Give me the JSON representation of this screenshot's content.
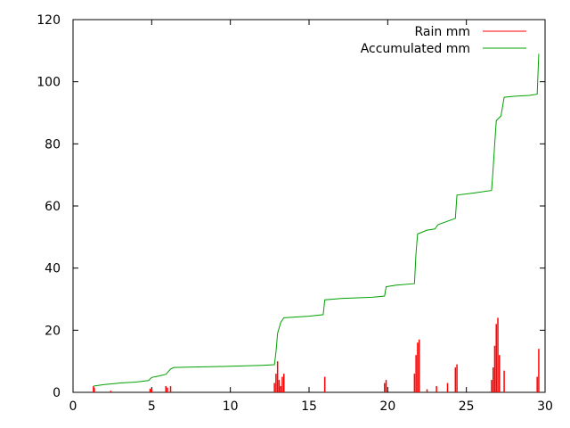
{
  "chart_data": {
    "type": "line",
    "title": "",
    "xlabel": "",
    "ylabel": "",
    "xlim": [
      0,
      30
    ],
    "ylim": [
      0,
      120
    ],
    "x_ticks": [
      0,
      5,
      10,
      15,
      20,
      25,
      30
    ],
    "y_ticks": [
      0,
      20,
      40,
      60,
      80,
      100,
      120
    ],
    "x_tick_labels": [
      "0",
      "5",
      "10",
      "15",
      "20",
      "25",
      "30"
    ],
    "y_tick_labels": [
      "0",
      "20",
      "40",
      "60",
      "80",
      "100",
      "120"
    ],
    "grid": false,
    "legend_position": "top-right",
    "series": [
      {
        "name": "Rain mm",
        "color": "#ff0000",
        "style": "impulses",
        "points": [
          [
            1.3,
            2.0
          ],
          [
            1.35,
            1.5
          ],
          [
            2.4,
            0.5
          ],
          [
            4.9,
            1.2
          ],
          [
            5.0,
            1.0
          ],
          [
            5.9,
            2.0
          ],
          [
            6.0,
            1.5
          ],
          [
            6.2,
            2.0
          ],
          [
            12.8,
            3.0
          ],
          [
            12.9,
            6.0
          ],
          [
            13.0,
            10.0
          ],
          [
            13.1,
            4.0
          ],
          [
            13.2,
            2.0
          ],
          [
            13.3,
            5.0
          ],
          [
            13.4,
            6.0
          ],
          [
            16.0,
            5.0
          ],
          [
            19.8,
            3.0
          ],
          [
            19.9,
            4.0
          ],
          [
            21.7,
            6.0
          ],
          [
            21.8,
            12.0
          ],
          [
            21.9,
            16.0
          ],
          [
            22.0,
            17.0
          ],
          [
            22.5,
            1.0
          ],
          [
            23.1,
            2.0
          ],
          [
            23.8,
            3.0
          ],
          [
            24.3,
            8.0
          ],
          [
            24.4,
            9.0
          ],
          [
            26.6,
            4.0
          ],
          [
            26.7,
            8.0
          ],
          [
            26.8,
            15.0
          ],
          [
            26.9,
            22.0
          ],
          [
            27.0,
            24.0
          ],
          [
            27.1,
            12.0
          ],
          [
            27.4,
            7.0
          ],
          [
            29.5,
            5.0
          ],
          [
            29.6,
            14.0
          ]
        ]
      },
      {
        "name": "Accumulated mm",
        "color": "#00a000",
        "style": "lines",
        "points": [
          [
            1.3,
            2.0
          ],
          [
            2.0,
            2.5
          ],
          [
            3.0,
            3.0
          ],
          [
            4.0,
            3.3
          ],
          [
            4.8,
            3.8
          ],
          [
            5.0,
            4.8
          ],
          [
            5.5,
            5.3
          ],
          [
            5.9,
            5.8
          ],
          [
            6.2,
            7.5
          ],
          [
            6.4,
            8.0
          ],
          [
            8.0,
            8.2
          ],
          [
            10.0,
            8.4
          ],
          [
            12.0,
            8.7
          ],
          [
            12.8,
            8.9
          ],
          [
            12.9,
            13.0
          ],
          [
            13.0,
            19.0
          ],
          [
            13.2,
            22.5
          ],
          [
            13.4,
            24.0
          ],
          [
            15.0,
            24.5
          ],
          [
            15.9,
            25.0
          ],
          [
            16.0,
            29.8
          ],
          [
            17.0,
            30.2
          ],
          [
            19.0,
            30.6
          ],
          [
            19.8,
            31.0
          ],
          [
            19.9,
            34.0
          ],
          [
            20.5,
            34.5
          ],
          [
            21.7,
            35.0
          ],
          [
            21.8,
            45.0
          ],
          [
            21.9,
            51.0
          ],
          [
            22.5,
            52.2
          ],
          [
            23.0,
            52.6
          ],
          [
            23.2,
            54.0
          ],
          [
            24.3,
            56.0
          ],
          [
            24.4,
            63.5
          ],
          [
            25.5,
            64.2
          ],
          [
            26.6,
            65.0
          ],
          [
            26.7,
            72.0
          ],
          [
            26.8,
            80.0
          ],
          [
            26.9,
            87.5
          ],
          [
            27.2,
            89.0
          ],
          [
            27.4,
            95.0
          ],
          [
            28.0,
            95.3
          ],
          [
            29.0,
            95.6
          ],
          [
            29.5,
            96.0
          ],
          [
            29.6,
            109.0
          ]
        ]
      }
    ]
  }
}
